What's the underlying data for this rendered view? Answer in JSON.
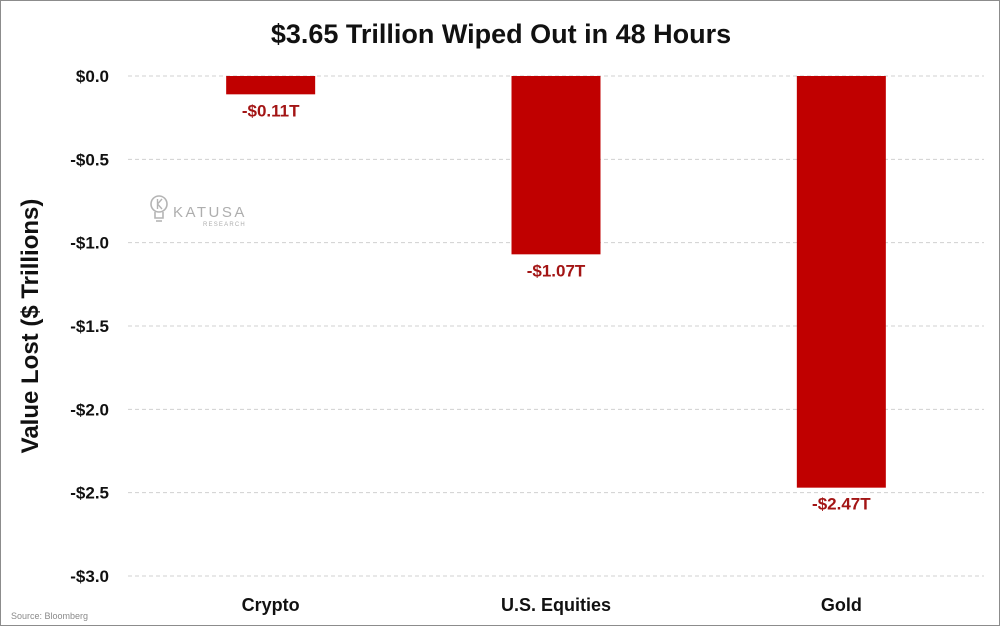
{
  "chart_data": {
    "type": "bar",
    "title": "$3.65 Trillion Wiped Out in 48 Hours",
    "xlabel": "",
    "ylabel": "Value Lost ($ Trillions)",
    "categories": [
      "Crypto",
      "U.S. Equities",
      "Gold"
    ],
    "values": [
      -0.11,
      -1.07,
      -2.47
    ],
    "data_labels": [
      "-$0.11T",
      "-$1.07T",
      "-$2.47T"
    ],
    "ylim": [
      -3.0,
      0.0
    ],
    "yticks": [
      0.0,
      -0.5,
      -1.0,
      -1.5,
      -2.0,
      -2.5,
      -3.0
    ],
    "ytick_labels": [
      "$0.0",
      "-$0.5",
      "-$1.0",
      "-$1.5",
      "-$2.0",
      "-$2.5",
      "-$3.0"
    ],
    "grid": true,
    "legend": "none",
    "bar_color": "#c00000",
    "label_color": "#a31515",
    "source": "Source: Bloomberg"
  },
  "watermark": {
    "name": "KATUSA",
    "sub": "RESEARCH",
    "icon": "lightbulb-k-icon"
  }
}
